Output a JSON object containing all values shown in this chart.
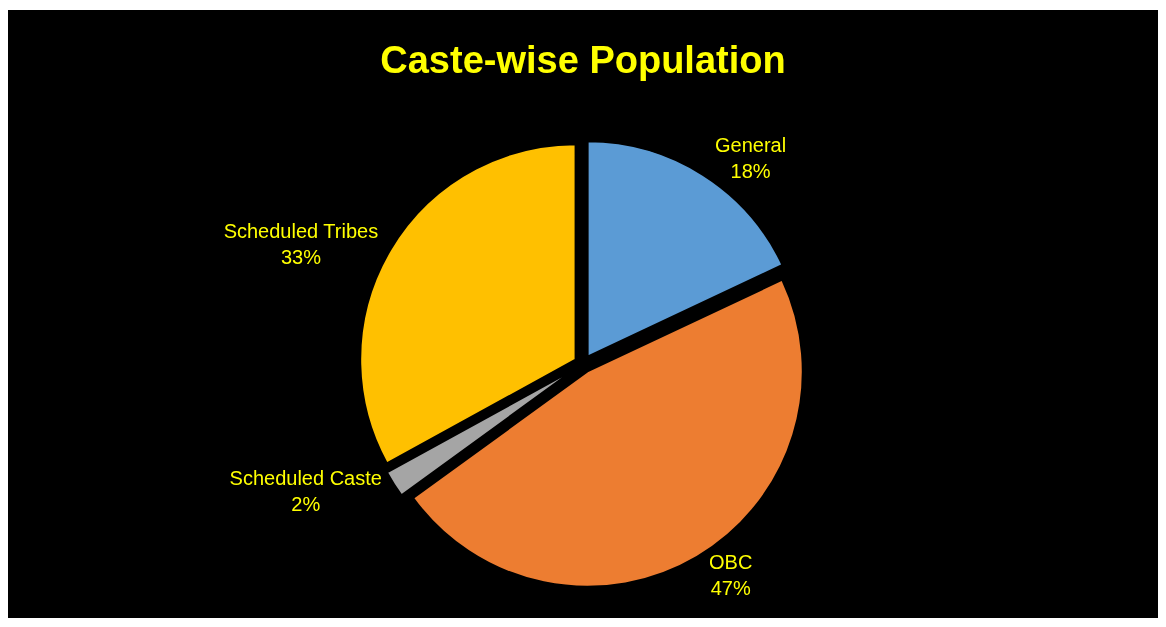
{
  "chart_data": {
    "type": "pie",
    "title": "Caste-wise Population",
    "categories": [
      "General",
      "OBC",
      "Scheduled Caste",
      "Scheduled Tribes"
    ],
    "values": [
      18,
      47,
      2,
      33
    ],
    "value_labels": [
      "18%",
      "47%",
      "2%",
      "33%"
    ],
    "colors": [
      "#5b9bd5",
      "#ed7d31",
      "#a5a5a5",
      "#ffc000"
    ],
    "legend": false
  }
}
